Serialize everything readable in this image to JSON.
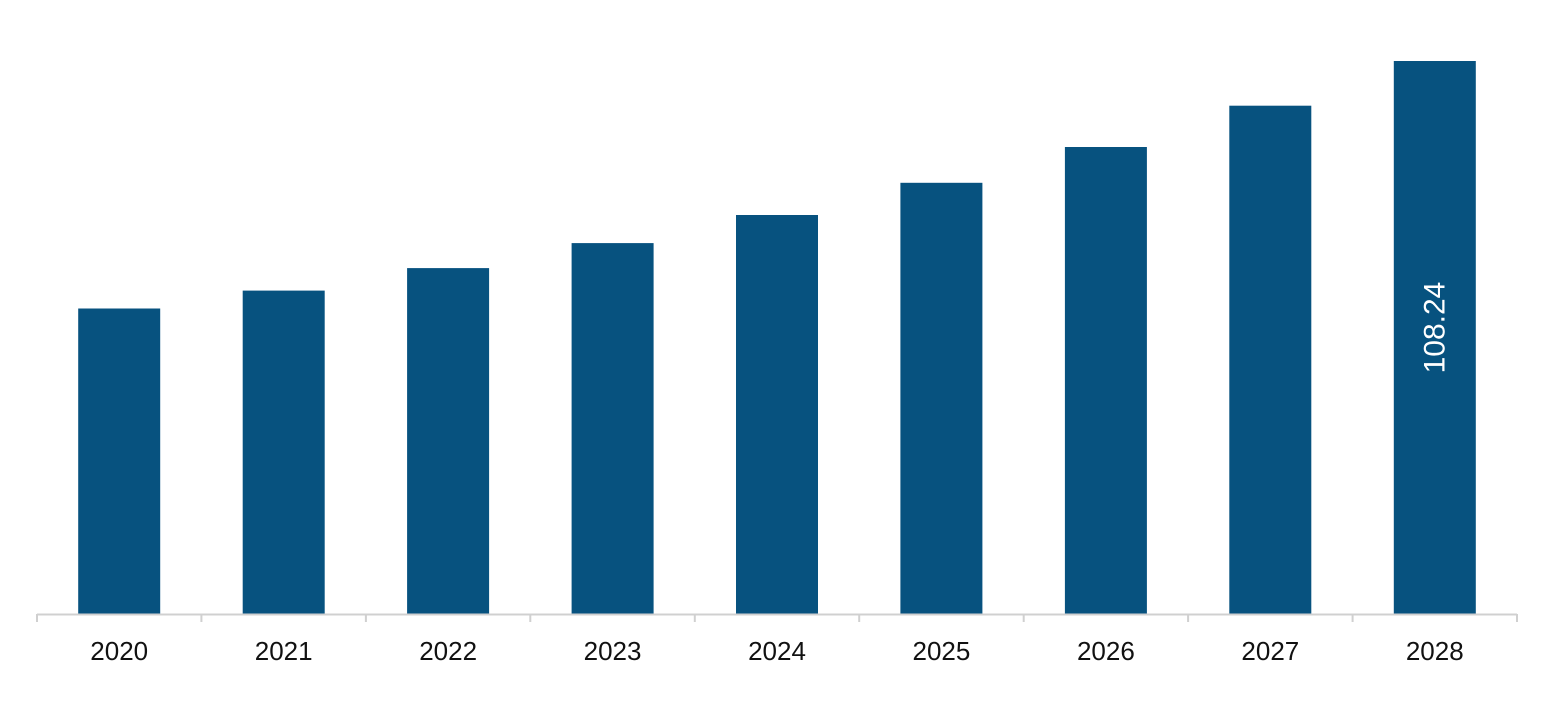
{
  "chart_data": {
    "type": "bar",
    "categories": [
      "2020",
      "2021",
      "2022",
      "2023",
      "2024",
      "2025",
      "2026",
      "2027",
      "2028"
    ],
    "values": [
      59.8,
      63.3,
      67.7,
      72.6,
      78.1,
      84.4,
      91.4,
      99.5,
      108.24
    ],
    "data_labels": [
      "",
      "",
      "",
      "",
      "",
      "",
      "",
      "",
      "108.24"
    ],
    "title": "",
    "xlabel": "",
    "ylabel": "",
    "ylim": [
      0,
      108.24
    ],
    "grid": false,
    "legend": "none",
    "colors": {
      "bar": "#07527f",
      "axis": "#d0d0d0",
      "tick_text": "#111111",
      "data_label_text": "#ffffff"
    }
  }
}
